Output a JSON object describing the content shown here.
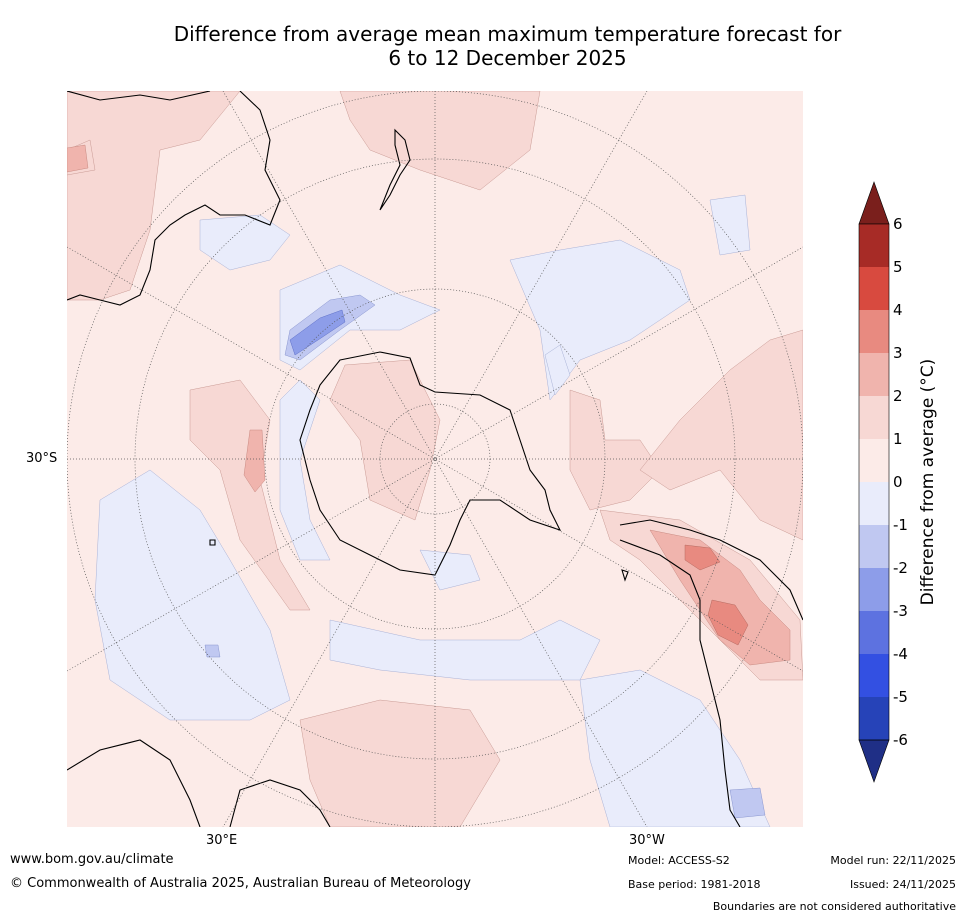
{
  "title": {
    "line1": "Difference from average mean maximum temperature forecast for",
    "line2": "6 to 12 December 2025"
  },
  "axis_labels": {
    "lat_left": "30°S",
    "lon_bottom_left": "30°E",
    "lon_bottom_right": "30°W"
  },
  "colorbar": {
    "title": "Difference from average (°C)",
    "tick_labels": [
      "6",
      "5",
      "4",
      "3",
      "2",
      "1",
      "0",
      "-1",
      "-2",
      "-3",
      "-4",
      "-5",
      "-6"
    ],
    "bands_top_to_bottom": [
      "#a72b26",
      "#d84a3f",
      "#e88a80",
      "#f0b4ad",
      "#f7d8d4",
      "#fcebe8",
      "#e9ecfb",
      "#c0c8f1",
      "#8d9de9",
      "#5d72e0",
      "#3350e2",
      "#2643b8"
    ],
    "extend_high_color": "#7a1f1c",
    "extend_low_color": "#1f2f86"
  },
  "footer": {
    "website": "www.bom.gov.au/climate",
    "copyright": "© Commonwealth of Australia 2025, Australian Bureau of Meteorology",
    "model": "Model: ACCESS-S2",
    "base_period": "Base period: 1981-2018",
    "model_run": "Model run: 22/11/2025",
    "issued": "Issued: 24/11/2025",
    "disclaimer": "Boundaries are not considered authoritative"
  }
}
